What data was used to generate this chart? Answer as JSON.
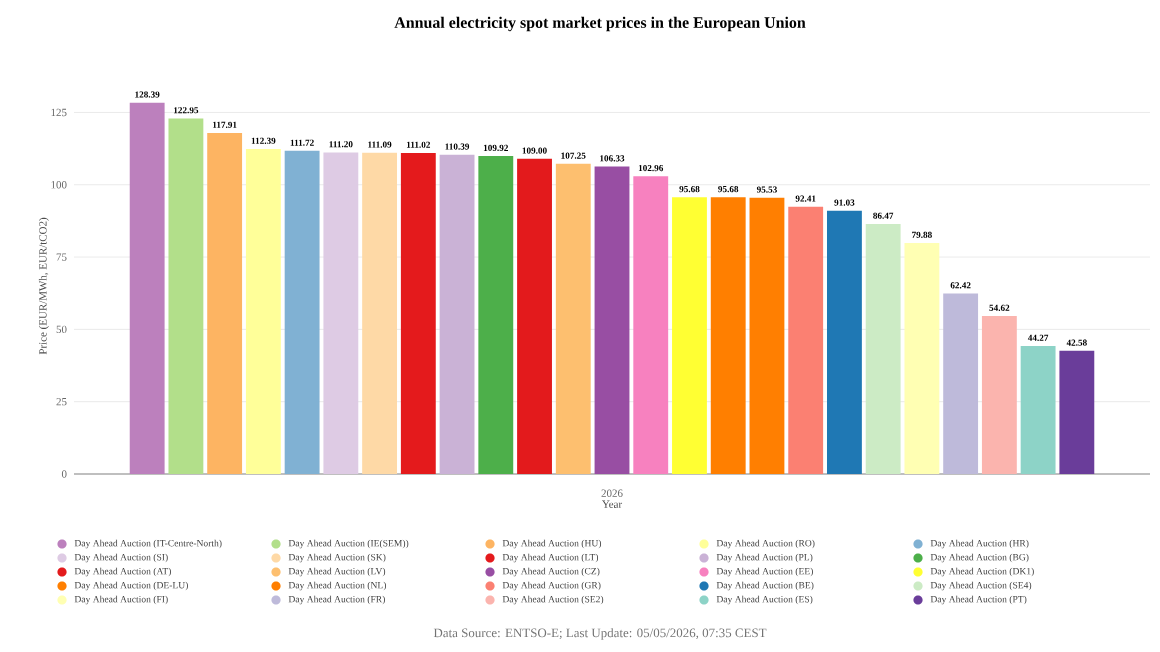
{
  "chart_data": {
    "type": "bar",
    "title": "Annual electricity spot market prices in the European Union",
    "xlabel": "Year",
    "ylabel": "Price (EUR/MWh, EUR/tCO2)",
    "categories": [
      "2026"
    ],
    "ylim": [
      0,
      130
    ],
    "yticks": [
      0,
      25,
      50,
      75,
      100,
      125
    ],
    "grid": "y",
    "legend": "bottom",
    "annotations": [
      "Data Source: ENTSO-E; Last Update: 05/05/2026, 07:35 CEST"
    ],
    "series": [
      {
        "name": "Day Ahead Auction (IT-Centre-North)",
        "color": "#bc80bd",
        "values": [
          128.39
        ],
        "value_labels": [
          "128.39"
        ]
      },
      {
        "name": "Day Ahead Auction (IE(SEM))",
        "color": "#b2df8a",
        "values": [
          122.95
        ],
        "value_labels": [
          "122.95"
        ]
      },
      {
        "name": "Day Ahead Auction (HU)",
        "color": "#fdb462",
        "values": [
          117.91
        ],
        "value_labels": [
          "117.91"
        ]
      },
      {
        "name": "Day Ahead Auction (RO)",
        "color": "#ffff99",
        "values": [
          112.39
        ],
        "value_labels": [
          "112.39"
        ]
      },
      {
        "name": "Day Ahead Auction (HR)",
        "color": "#80b1d3",
        "values": [
          111.72
        ],
        "value_labels": [
          "111.72"
        ]
      },
      {
        "name": "Day Ahead Auction (SI)",
        "color": "#decbe4",
        "values": [
          111.2
        ],
        "value_labels": [
          "111.20"
        ]
      },
      {
        "name": "Day Ahead Auction (SK)",
        "color": "#fed9a6",
        "values": [
          111.09
        ],
        "value_labels": [
          "111.09"
        ]
      },
      {
        "name": "Day Ahead Auction (LT)",
        "color": "#e41a1c",
        "values": [
          111.02
        ],
        "value_labels": [
          "111.02"
        ]
      },
      {
        "name": "Day Ahead Auction (PL)",
        "color": "#cab2d6",
        "values": [
          110.39
        ],
        "value_labels": [
          "110.39"
        ]
      },
      {
        "name": "Day Ahead Auction (BG)",
        "color": "#4daf4a",
        "values": [
          109.92
        ],
        "value_labels": [
          "109.92"
        ]
      },
      {
        "name": "Day Ahead Auction (AT)",
        "color": "#e31a1c",
        "values": [
          109.0
        ],
        "value_labels": [
          "109.00"
        ]
      },
      {
        "name": "Day Ahead Auction (LV)",
        "color": "#fdbf6f",
        "values": [
          107.25
        ],
        "value_labels": [
          "107.25"
        ]
      },
      {
        "name": "Day Ahead Auction (CZ)",
        "color": "#984ea3",
        "values": [
          106.33
        ],
        "value_labels": [
          "106.33"
        ]
      },
      {
        "name": "Day Ahead Auction (EE)",
        "color": "#f781bf",
        "values": [
          102.96
        ],
        "value_labels": [
          "102.96"
        ]
      },
      {
        "name": "Day Ahead Auction (DK1)",
        "color": "#ffff33",
        "values": [
          95.68
        ],
        "value_labels": [
          "95.68"
        ]
      },
      {
        "name": "Day Ahead Auction (DE-LU)",
        "color": "#ff7f00",
        "values": [
          95.68
        ],
        "value_labels": [
          "95.68"
        ]
      },
      {
        "name": "Day Ahead Auction (NL)",
        "color": "#ff7f01",
        "values": [
          95.53
        ],
        "value_labels": [
          "95.53"
        ]
      },
      {
        "name": "Day Ahead Auction (GR)",
        "color": "#fb8072",
        "values": [
          92.41
        ],
        "value_labels": [
          "92.41"
        ]
      },
      {
        "name": "Day Ahead Auction (BE)",
        "color": "#1f78b4",
        "values": [
          91.03
        ],
        "value_labels": [
          "91.03"
        ]
      },
      {
        "name": "Day Ahead Auction (SE4)",
        "color": "#ccebc5",
        "values": [
          86.47
        ],
        "value_labels": [
          "86.47"
        ]
      },
      {
        "name": "Day Ahead Auction (FI)",
        "color": "#ffffb3",
        "values": [
          79.88
        ],
        "value_labels": [
          "79.88"
        ]
      },
      {
        "name": "Day Ahead Auction (FR)",
        "color": "#bebada",
        "values": [
          62.42
        ],
        "value_labels": [
          "62.42"
        ]
      },
      {
        "name": "Day Ahead Auction (SE2)",
        "color": "#fbb4ae",
        "values": [
          54.62
        ],
        "value_labels": [
          "54.62"
        ]
      },
      {
        "name": "Day Ahead Auction (ES)",
        "color": "#8dd3c7",
        "values": [
          44.27
        ],
        "value_labels": [
          "44.27"
        ]
      },
      {
        "name": "Day Ahead Auction (PT)",
        "color": "#6a3d9a",
        "values": [
          42.58
        ],
        "value_labels": [
          "42.58"
        ]
      }
    ]
  }
}
